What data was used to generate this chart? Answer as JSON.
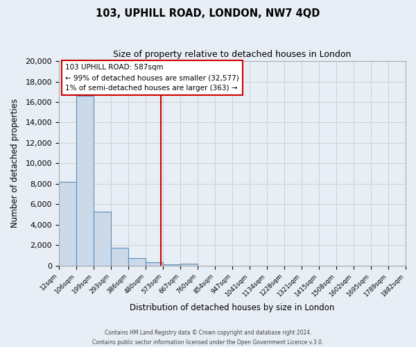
{
  "title": "103, UPHILL ROAD, LONDON, NW7 4QD",
  "subtitle": "Size of property relative to detached houses in London",
  "xlabel": "Distribution of detached houses by size in London",
  "ylabel": "Number of detached properties",
  "bin_labels": [
    "12sqm",
    "106sqm",
    "199sqm",
    "293sqm",
    "386sqm",
    "480sqm",
    "573sqm",
    "667sqm",
    "760sqm",
    "854sqm",
    "947sqm",
    "1041sqm",
    "1134sqm",
    "1228sqm",
    "1321sqm",
    "1415sqm",
    "1508sqm",
    "1602sqm",
    "1695sqm",
    "1789sqm",
    "1882sqm"
  ],
  "bar_heights": [
    8200,
    16600,
    5300,
    1750,
    750,
    300,
    150,
    200,
    0,
    0,
    0,
    0,
    0,
    0,
    0,
    0,
    0,
    0,
    0,
    0
  ],
  "bar_color": "#ccd9e8",
  "bar_edge_color": "#5b8db8",
  "vline_x": 5.87,
  "vline_color": "#cc0000",
  "annotation_title": "103 UPHILL ROAD: 587sqm",
  "annotation_line1": "← 99% of detached houses are smaller (32,577)",
  "annotation_line2": "1% of semi-detached houses are larger (363) →",
  "annotation_box_color": "#cc0000",
  "ylim": [
    0,
    20000
  ],
  "yticks": [
    0,
    2000,
    4000,
    6000,
    8000,
    10000,
    12000,
    14000,
    16000,
    18000,
    20000
  ],
  "grid_color": "#cccccc",
  "background_color": "#e8eef5",
  "plot_bg_color": "#e8eef5",
  "footer_line1": "Contains HM Land Registry data © Crown copyright and database right 2024.",
  "footer_line2": "Contains public sector information licensed under the Open Government Licence v.3.0."
}
